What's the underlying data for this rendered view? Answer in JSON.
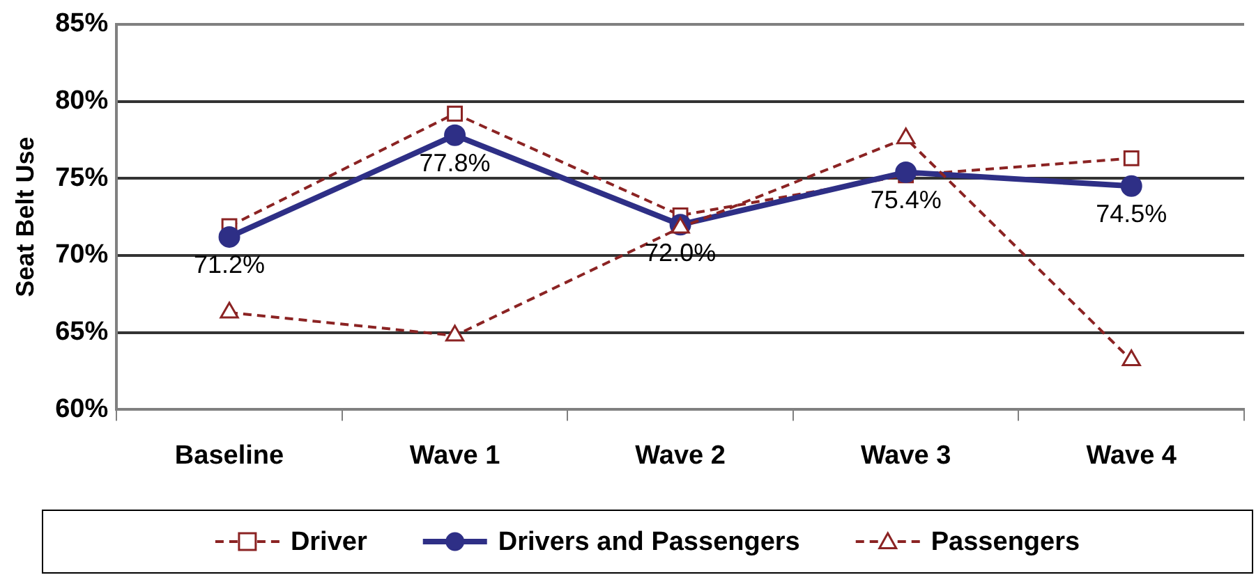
{
  "chart_data": {
    "type": "line",
    "ylabel": "Seat Belt Use",
    "categories": [
      "Baseline",
      "Wave 1",
      "Wave 2",
      "Wave 3",
      "Wave 4"
    ],
    "series": [
      {
        "name": "Driver",
        "color": "#8b2323",
        "marker": "square",
        "line_style": "dashed",
        "values": [
          71.9,
          79.2,
          72.6,
          75.2,
          76.3
        ]
      },
      {
        "name": "Drivers and Passengers",
        "color": "#2e2f86",
        "marker": "circle",
        "line_style": "solid",
        "values": [
          71.2,
          77.8,
          72.0,
          75.4,
          74.5
        ],
        "value_labels": [
          "71.2%",
          "77.8%",
          "72.0%",
          "75.4%",
          "74.5%"
        ]
      },
      {
        "name": "Passengers",
        "color": "#8b2323",
        "marker": "triangle",
        "line_style": "dashed",
        "values": [
          66.3,
          64.8,
          71.8,
          77.6,
          63.2
        ]
      }
    ],
    "ylim": [
      60,
      85
    ],
    "yticks": [
      {
        "value": 60,
        "label": "60%"
      },
      {
        "value": 65,
        "label": "65%"
      },
      {
        "value": 70,
        "label": "70%"
      },
      {
        "value": 75,
        "label": "75%"
      },
      {
        "value": 80,
        "label": "80%"
      },
      {
        "value": 85,
        "label": "85%"
      }
    ],
    "grid": "y",
    "legend": "bottom"
  }
}
